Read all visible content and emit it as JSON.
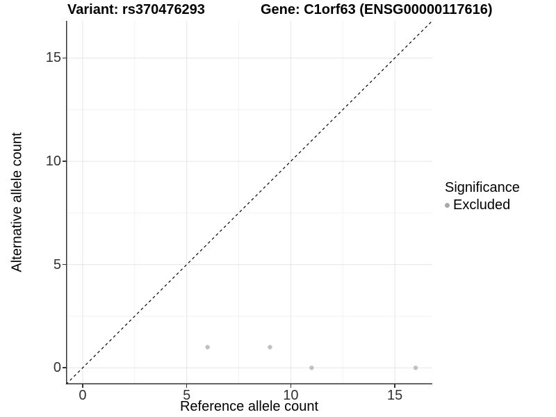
{
  "colors": {
    "background": "#ffffff",
    "grid_major": "#e5e5e5",
    "grid_minor": "#f2f2f2",
    "axis_line": "#333333",
    "tick_label": "#303030",
    "identity_line": "#000000",
    "point_fill": "#c0c0c0",
    "legend_key": "#a9a9a9"
  },
  "chart_data": {
    "type": "scatter",
    "title_left": "Variant: rs370476293",
    "title_right": "Gene: C1orf63 (ENSG00000117616)",
    "xlabel": "Reference allele count",
    "ylabel": "Alternative allele count",
    "xlim": [
      -0.8,
      16.8
    ],
    "ylim": [
      -0.8,
      16.8
    ],
    "x_ticks": [
      0,
      5,
      10,
      15
    ],
    "y_ticks": [
      0,
      5,
      10,
      15
    ],
    "x_minor_ticks": [
      2.5,
      7.5,
      12.5
    ],
    "y_minor_ticks": [
      2.5,
      7.5,
      12.5
    ],
    "grid": "on",
    "identity_line": {
      "style": "dashed",
      "color": "#000000",
      "from": -0.8,
      "to": 16.8
    },
    "series": [
      {
        "name": "Excluded",
        "color": "#c0c0c0",
        "marker": "circle",
        "points": [
          [
            6,
            1
          ],
          [
            9,
            1
          ],
          [
            11,
            0
          ],
          [
            16,
            0
          ]
        ]
      }
    ],
    "legend": {
      "title": "Significance",
      "position": "right",
      "items": [
        {
          "label": "Excluded",
          "color": "#a9a9a9"
        }
      ]
    }
  }
}
